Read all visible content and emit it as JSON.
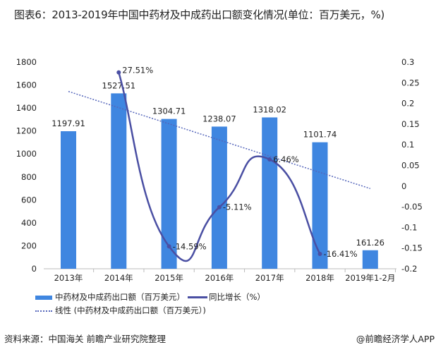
{
  "title": "图表6：2013-2019年中国中药材及中成药出口额变化情况(单位：百万美元，%)",
  "source": "资料来源：中国海关 前瞻产业研究院整理",
  "brand": "@前瞻经济学人APP",
  "chart_data": {
    "type": "bar",
    "categories": [
      "2013年",
      "2014年",
      "2015年",
      "2016年",
      "2017年",
      "2018年",
      "2019年1-2月"
    ],
    "series": [
      {
        "name": "中药材及中成药出口额（百万美元）",
        "type": "bar",
        "axis": "left",
        "color": "#3f86e0",
        "values": [
          1197.91,
          1527.51,
          1304.71,
          1238.07,
          1318.02,
          1101.74,
          161.26
        ],
        "labels": [
          "1197.91",
          "1527.51",
          "1304.71",
          "1238.07",
          "1318.02",
          "1101.74",
          "161.26"
        ]
      },
      {
        "name": "同比增长（%）",
        "type": "line",
        "axis": "right",
        "color": "#4a4fa3",
        "values": [
          null,
          0.2751,
          -0.1459,
          -0.0511,
          0.0646,
          -0.1641,
          null
        ],
        "labels": [
          null,
          "27.51%",
          "-14.59%",
          "-5.11%",
          "6.46%",
          "-16.41%",
          null
        ]
      },
      {
        "name": "线性 (中药材及中成药出口额（百万美元）)",
        "type": "trendline",
        "axis": "left",
        "color": "#5566bb"
      }
    ],
    "left_axis": {
      "min": 0,
      "max": 1800,
      "ticks": [
        "0",
        "200",
        "400",
        "600",
        "800",
        "1000",
        "1200",
        "1400",
        "1600",
        "1800"
      ]
    },
    "right_axis": {
      "min": -0.2,
      "max": 0.3,
      "ticks": [
        "-0.2",
        "-0.15",
        "-0.1",
        "-0.05",
        "0",
        "0.05",
        "0.1",
        "0.15",
        "0.2",
        "0.25",
        "0.3"
      ]
    },
    "legend_position": "bottom"
  }
}
